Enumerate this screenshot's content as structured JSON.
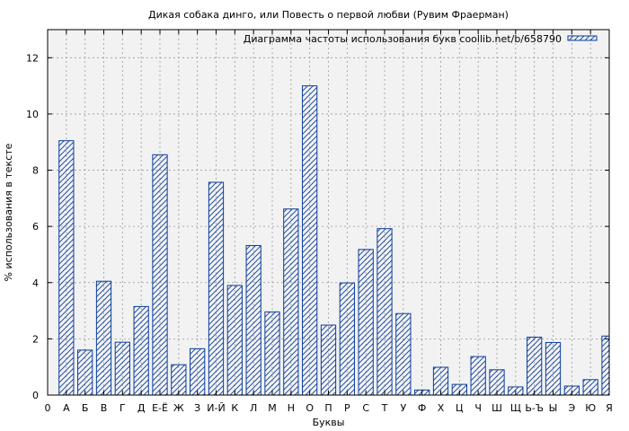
{
  "chart_data": {
    "type": "bar",
    "title": "Дикая собака динго, или Повесть о первой любви (Рувим Фраерман)",
    "xlabel": "Буквы",
    "ylabel": "% использования в тексте",
    "ylim": [
      0,
      13
    ],
    "yticks": [
      0,
      2,
      4,
      6,
      8,
      10,
      12
    ],
    "x_first_tick": "0",
    "grid": true,
    "legend_position": "top-right",
    "series": [
      {
        "name": "Диаграмма частоты использования букв coollib.net/b/658790",
        "color": "#0a3d9c",
        "pattern": "diagonal-hatch"
      }
    ],
    "categories": [
      "А",
      "Б",
      "В",
      "Г",
      "Д",
      "Е-Ё",
      "Ж",
      "З",
      "И-Й",
      "К",
      "Л",
      "М",
      "Н",
      "О",
      "П",
      "Р",
      "С",
      "Т",
      "У",
      "Ф",
      "Х",
      "Ц",
      "Ч",
      "Ш",
      "Щ",
      "Ь-Ъ",
      "Ы",
      "Э",
      "Ю",
      "Я"
    ],
    "values": [
      9.05,
      1.6,
      4.05,
      1.88,
      3.15,
      8.55,
      1.08,
      1.65,
      7.57,
      3.9,
      5.32,
      2.96,
      6.62,
      11.0,
      2.49,
      3.99,
      5.18,
      5.92,
      2.9,
      0.18,
      0.99,
      0.38,
      1.37,
      0.9,
      0.29,
      2.06,
      1.87,
      0.32,
      0.55,
      2.1
    ]
  },
  "colors": {
    "plot_background": "#f2f2f2",
    "bar_stroke": "#0a3d9c",
    "grid": "#999999"
  }
}
